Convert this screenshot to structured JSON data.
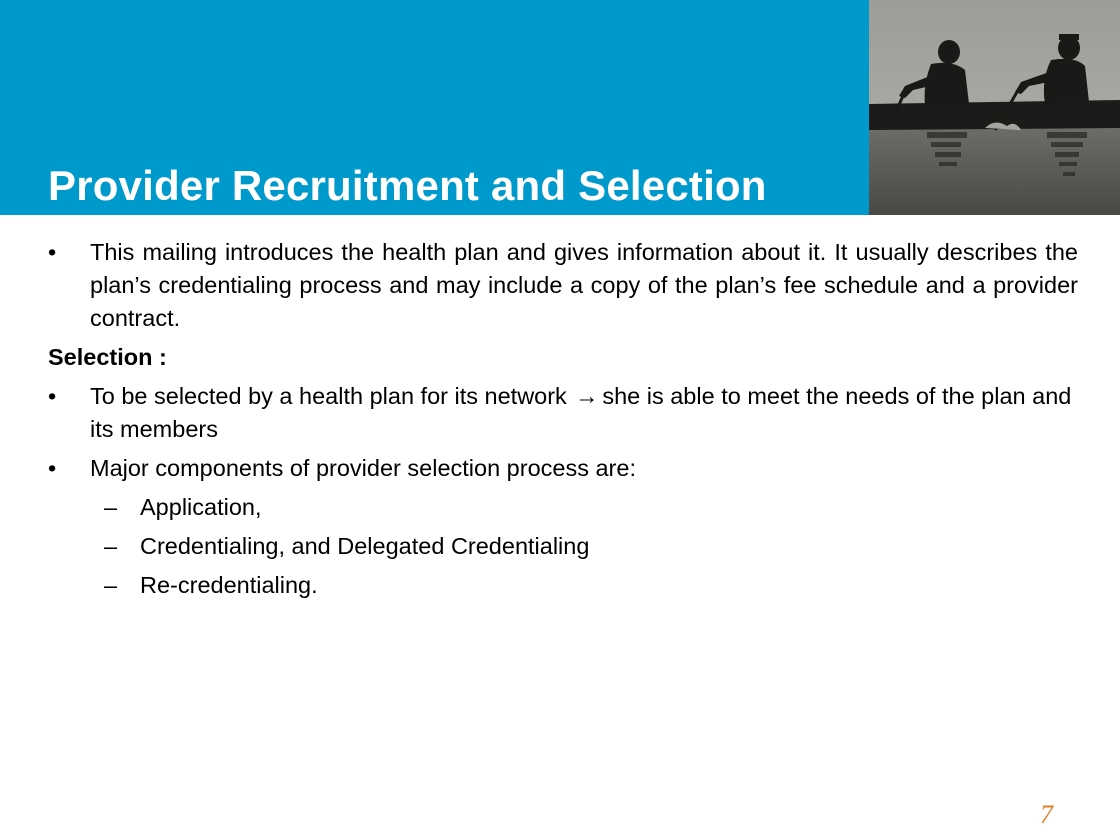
{
  "slide": {
    "title": "Provider Recruitment and Selection",
    "page_number": "7",
    "colors": {
      "header_band": "#0099cc",
      "title_text": "#ffffff",
      "page_number": "#e07b26"
    }
  },
  "content": {
    "intro_bullet": {
      "marker": "•",
      "text": "This mailing introduces the health plan and gives information about it. It usually describes the plan’s credentialing process and may include a copy of the plan’s fee schedule and a provider contract."
    },
    "selection_heading": "Selection :",
    "selected_bullet": {
      "marker": "•",
      "text_before_arrow": "To be selected by a health plan for its network",
      "arrow": "→",
      "text_after_arrow": "she is able to meet the needs of the plan and its members"
    },
    "components_bullet": {
      "marker": "•",
      "text": "Major components of provider selection process are:"
    },
    "components": [
      {
        "marker": "–",
        "text": "Application,"
      },
      {
        "marker": "–",
        "text": "Credentialing, and Delegated Credentialing"
      },
      {
        "marker": "–",
        "text": "Re-credentialing."
      }
    ]
  }
}
